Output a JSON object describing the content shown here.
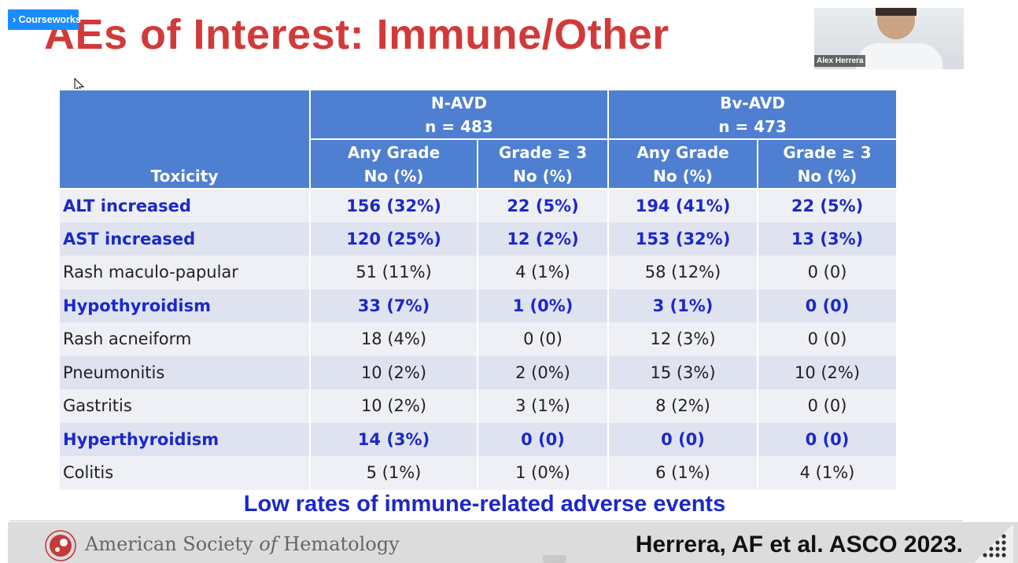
{
  "overlay": {
    "tag_label": "› Courseworks"
  },
  "slide": {
    "title": "AEs of Interest: Immune/Other",
    "subtitle": "Low rates of immune-related adverse events",
    "citation": "Herrera, AF et al. ASCO 2023."
  },
  "speaker": {
    "name": "Alex Herrera"
  },
  "table": {
    "toxicity_header": "Toxicity",
    "groups": [
      {
        "name": "N-AVD",
        "n": "n = 483"
      },
      {
        "name": "Bv-AVD",
        "n": "n = 473"
      }
    ],
    "subheaders": [
      {
        "line1": "Any Grade",
        "line2": "No (%)"
      },
      {
        "line1": "Grade ≥ 3",
        "line2": "No (%)"
      },
      {
        "line1": "Any Grade",
        "line2": "No (%)"
      },
      {
        "line1": "Grade ≥ 3",
        "line2": "No (%)"
      }
    ],
    "rows": [
      {
        "toxicity": "ALT increased",
        "emphasis": true,
        "values": [
          "156 (32%)",
          "22 (5%)",
          "194 (41%)",
          "22 (5%)"
        ]
      },
      {
        "toxicity": "AST increased",
        "emphasis": true,
        "values": [
          "120 (25%)",
          "12 (2%)",
          "153 (32%)",
          "13 (3%)"
        ]
      },
      {
        "toxicity": "Rash maculo-papular",
        "emphasis": false,
        "values": [
          "51 (11%)",
          "4 (1%)",
          "58 (12%)",
          "0 (0)"
        ]
      },
      {
        "toxicity": "Hypothyroidism",
        "emphasis": true,
        "values": [
          "33 (7%)",
          "1 (0%)",
          "3 (1%)",
          "0 (0)"
        ]
      },
      {
        "toxicity": "Rash acneiform",
        "emphasis": false,
        "values": [
          "18 (4%)",
          "0 (0)",
          "12 (3%)",
          "0 (0)"
        ]
      },
      {
        "toxicity": "Pneumonitis",
        "emphasis": false,
        "values": [
          "10 (2%)",
          "2 (0%)",
          "15 (3%)",
          "10 (2%)"
        ]
      },
      {
        "toxicity": "Gastritis",
        "emphasis": false,
        "values": [
          "10 (2%)",
          "3 (1%)",
          "8 (2%)",
          "0 (0)"
        ]
      },
      {
        "toxicity": "Hyperthyroidism",
        "emphasis": true,
        "values": [
          "14 (3%)",
          "0 (0)",
          "0 (0)",
          "0 (0)"
        ]
      },
      {
        "toxicity": "Colitis",
        "emphasis": false,
        "values": [
          "5 (1%)",
          "1 (0%)",
          "6 (1%)",
          "4 (1%)"
        ]
      }
    ]
  },
  "footer": {
    "society_prefix": "American Society ",
    "society_of": "of",
    "society_suffix": " Hematology"
  },
  "colors": {
    "title_red": "#d23a3a",
    "header_blue": "#4f7fd1",
    "emphasis_blue": "#1c28c8",
    "row_light": "#eef0f6",
    "row_dark": "#dfe3ef",
    "tag_blue": "#1a8cff"
  },
  "icons": [
    "mouse-pointer-icon",
    "ash-logo-icon",
    "resize-grip-icon"
  ]
}
